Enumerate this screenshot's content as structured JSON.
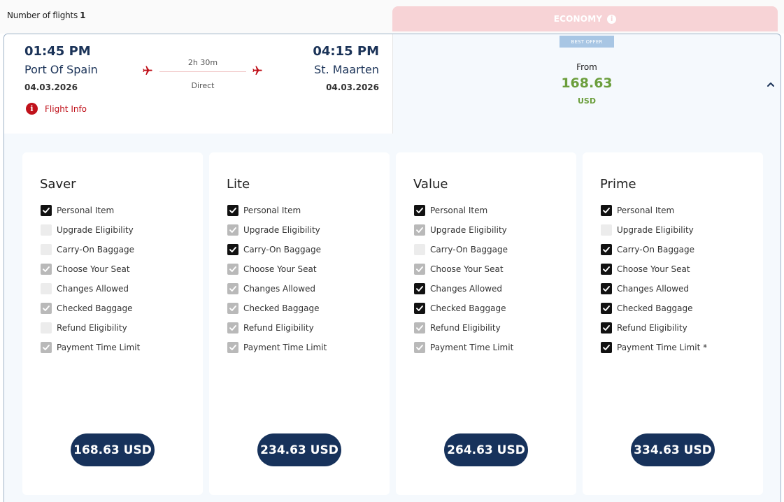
{
  "header": {
    "flights_label": "Number of flights",
    "flights_count": "1"
  },
  "cabin_tab": {
    "label": "ECONOMY",
    "icon": "info-icon",
    "color": "#f7d3d6"
  },
  "flight": {
    "departure": {
      "time": "01:45 PM",
      "city": "Port Of Spain",
      "date": "04.03.2026"
    },
    "arrival": {
      "time": "04:15 PM",
      "city": "St. Maarten",
      "date": "04.03.2026"
    },
    "duration": "2h 30m",
    "stops": "Direct",
    "info_link": "Flight Info"
  },
  "offer": {
    "badge": "BEST OFFER",
    "from_label": "From",
    "price": "168.63",
    "currency": "USD",
    "price_color": "#6b9e3c"
  },
  "fares": [
    {
      "name": "Saver",
      "price": "168.63 USD",
      "features": [
        {
          "label": "Personal Item",
          "state": "on"
        },
        {
          "label": "Upgrade Eligibility",
          "state": "off"
        },
        {
          "label": "Carry-On Baggage",
          "state": "off"
        },
        {
          "label": "Choose Your Seat",
          "state": "dim"
        },
        {
          "label": "Changes Allowed",
          "state": "off"
        },
        {
          "label": "Checked Baggage",
          "state": "dim"
        },
        {
          "label": "Refund Eligibility",
          "state": "off"
        },
        {
          "label": "Payment Time Limit",
          "state": "dim"
        }
      ]
    },
    {
      "name": "Lite",
      "price": "234.63 USD",
      "features": [
        {
          "label": "Personal Item",
          "state": "on"
        },
        {
          "label": "Upgrade Eligibility",
          "state": "dim"
        },
        {
          "label": "Carry-On Baggage",
          "state": "on"
        },
        {
          "label": "Choose Your Seat",
          "state": "dim"
        },
        {
          "label": "Changes Allowed",
          "state": "dim"
        },
        {
          "label": "Checked Baggage",
          "state": "dim"
        },
        {
          "label": "Refund Eligibility",
          "state": "dim"
        },
        {
          "label": "Payment Time Limit",
          "state": "dim"
        }
      ]
    },
    {
      "name": "Value",
      "price": "264.63 USD",
      "features": [
        {
          "label": "Personal Item",
          "state": "on"
        },
        {
          "label": "Upgrade Eligibility",
          "state": "dim"
        },
        {
          "label": "Carry-On Baggage",
          "state": "off"
        },
        {
          "label": "Choose Your Seat",
          "state": "dim"
        },
        {
          "label": "Changes Allowed",
          "state": "on"
        },
        {
          "label": "Checked Baggage",
          "state": "on"
        },
        {
          "label": "Refund Eligibility",
          "state": "dim"
        },
        {
          "label": "Payment Time Limit",
          "state": "dim"
        }
      ]
    },
    {
      "name": "Prime",
      "price": "334.63 USD",
      "features": [
        {
          "label": "Personal Item",
          "state": "on"
        },
        {
          "label": "Upgrade Eligibility",
          "state": "off"
        },
        {
          "label": "Carry-On Baggage",
          "state": "on"
        },
        {
          "label": "Choose Your Seat",
          "state": "on"
        },
        {
          "label": "Changes Allowed",
          "state": "on"
        },
        {
          "label": "Checked Baggage",
          "state": "on"
        },
        {
          "label": "Refund Eligibility",
          "state": "on"
        },
        {
          "label": "Payment Time Limit *",
          "state": "on"
        }
      ]
    }
  ]
}
